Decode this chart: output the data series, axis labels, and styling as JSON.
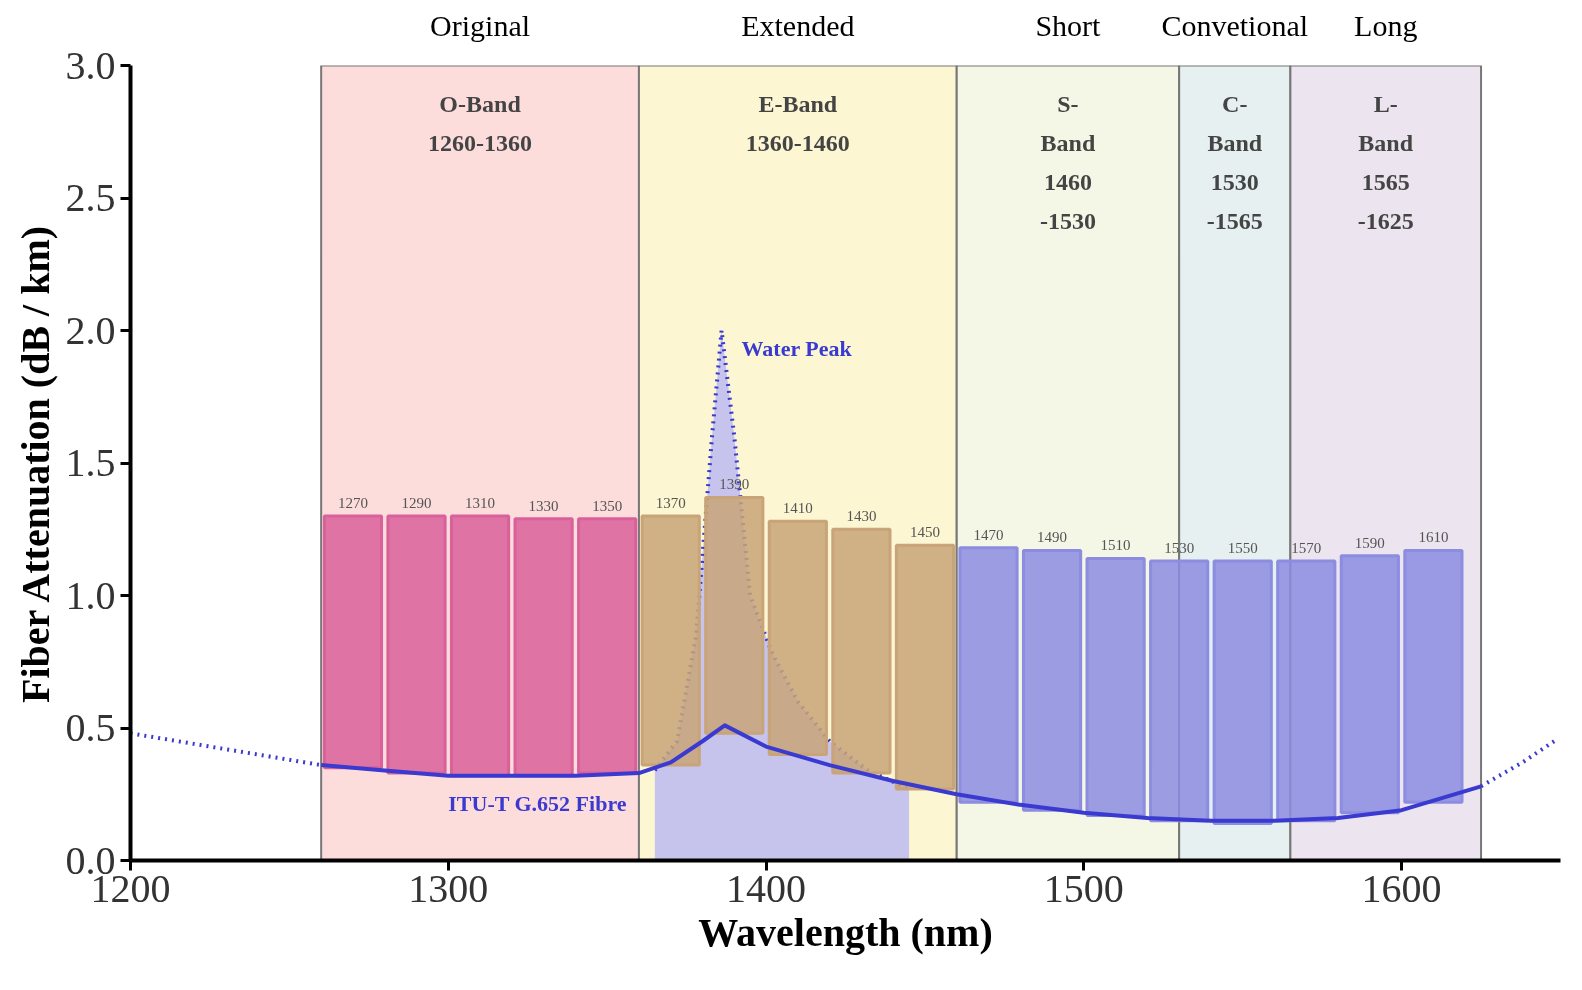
{
  "chart_data": {
    "type": "bar",
    "xlabel": "Wavelength (nm)",
    "ylabel": "Fiber Attenuation (dB / km)",
    "xlim": [
      1200,
      1650
    ],
    "xticks": [
      1200,
      1300,
      1400,
      1500,
      1600
    ],
    "ylim": [
      0,
      3
    ],
    "yticks": [
      {
        "value": 0,
        "label": "0.0"
      },
      {
        "value": 0.5,
        "label": "0.5"
      },
      {
        "value": 1,
        "label": "1.0"
      },
      {
        "value": 1.5,
        "label": "1.5"
      },
      {
        "value": 2,
        "label": "2.0"
      },
      {
        "value": 2.5,
        "label": "2.5"
      },
      {
        "value": 3,
        "label": "3.0"
      }
    ],
    "grid": false,
    "bands": [
      {
        "axis": "x",
        "from": 1260,
        "to": 1360,
        "label": "O-Band\n1260-1360",
        "color": "#fddcdc"
      },
      {
        "axis": "x",
        "from": 1360,
        "to": 1460,
        "label": "E-Band\n1360-1460",
        "color": "#fcf6d2"
      },
      {
        "axis": "x",
        "from": 1460,
        "to": 1530,
        "label": "S-\nBand\n1460\n-1530",
        "color": "#f4f6e6"
      },
      {
        "axis": "x",
        "from": 1530,
        "to": 1565,
        "label": "C-\nBand\n1530\n-1565",
        "color": "#e6f0f0"
      },
      {
        "axis": "x",
        "from": 1565,
        "to": 1625,
        "label": "L-\nBand\n1565\n-1625",
        "color": "#ece4ee"
      }
    ],
    "annotations": [
      "Original",
      "Extended",
      "Short",
      "Convetional",
      "Long",
      {
        "text": "1270",
        "x": 1270,
        "y": 1.3
      },
      {
        "text": "1290",
        "x": 1290,
        "y": 1.3
      },
      {
        "text": "1310",
        "x": 1310,
        "y": 1.3
      },
      {
        "text": "1330",
        "x": 1330,
        "y": 1.29
      },
      {
        "text": "1350",
        "x": 1350,
        "y": 1.29
      },
      {
        "text": "1370",
        "x": 1370,
        "y": 1.3
      },
      {
        "text": "1390",
        "x": 1390,
        "y": 1.37
      },
      {
        "text": "1410",
        "x": 1410,
        "y": 1.28
      },
      {
        "text": "1430",
        "x": 1430,
        "y": 1.25
      },
      {
        "text": "1450",
        "x": 1450,
        "y": 1.19
      },
      {
        "text": "1470",
        "x": 1470,
        "y": 1.18
      },
      {
        "text": "1490",
        "x": 1490,
        "y": 1.17
      },
      {
        "text": "1510",
        "x": 1510,
        "y": 1.14
      },
      {
        "text": "1530",
        "x": 1530,
        "y": 1.13
      },
      {
        "text": "1550",
        "x": 1550,
        "y": 1.13
      },
      {
        "text": "1570",
        "x": 1570,
        "y": 1.13
      },
      {
        "text": "1590",
        "x": 1590,
        "y": 1.15
      },
      {
        "text": "1610",
        "x": 1610,
        "y": 1.17
      }
    ],
    "series": [
      {
        "type": "area",
        "name": "Water Peak",
        "color": "#b8b8f2",
        "line_style": "dotted",
        "x": [
          1365,
          1372,
          1378,
          1383,
          1386,
          1390,
          1395,
          1402,
          1410,
          1420,
          1432,
          1445
        ],
        "values": [
          0.34,
          0.45,
          0.85,
          1.6,
          2.0,
          1.6,
          1.0,
          0.78,
          0.6,
          0.45,
          0.34,
          0.27
        ]
      },
      {
        "x": [
          1270,
          1290,
          1310,
          1330,
          1350,
          1370,
          1390,
          1410,
          1430,
          1450,
          1470,
          1490,
          1510,
          1530,
          1550,
          1570,
          1590,
          1610
        ],
        "base": [
          0.35,
          0.33,
          0.32,
          0.32,
          0.33,
          0.36,
          0.48,
          0.4,
          0.33,
          0.27,
          0.22,
          0.19,
          0.17,
          0.15,
          0.14,
          0.15,
          0.18,
          0.22
        ],
        "values": [
          0.95,
          0.97,
          0.98,
          0.97,
          0.96,
          0.94,
          0.89,
          0.88,
          0.92,
          0.92,
          0.96,
          0.98,
          0.97,
          0.98,
          0.99,
          0.98,
          0.97,
          0.95
        ],
        "colors": [
          "#d9609a",
          "#d9609a",
          "#d9609a",
          "#d9609a",
          "#d9609a",
          "#c8a478",
          "#c8a478",
          "#c8a478",
          "#c8a478",
          "#c8a478",
          "#8c8ce0",
          "#8c8ce0",
          "#8c8ce0",
          "#8c8ce0",
          "#8c8ce0",
          "#8c8ce0",
          "#8c8ce0",
          "#8c8ce0"
        ]
      },
      {
        "type": "line",
        "name": "ITU-T G.652 Fibre",
        "color": "#3a3ad0",
        "line_style": "solid",
        "x": [
          1260,
          1280,
          1300,
          1320,
          1340,
          1360,
          1370,
          1380,
          1387,
          1400,
          1420,
          1440,
          1460,
          1480,
          1500,
          1520,
          1540,
          1560,
          1580,
          1600,
          1625
        ],
        "values": [
          0.36,
          0.34,
          0.32,
          0.32,
          0.32,
          0.33,
          0.37,
          0.45,
          0.51,
          0.43,
          0.36,
          0.3,
          0.25,
          0.21,
          0.18,
          0.16,
          0.15,
          0.15,
          0.16,
          0.19,
          0.28
        ]
      },
      {
        "type": "line",
        "color": "#3a3ad0",
        "line_style": "dotted",
        "x": [
          1200,
          1220,
          1240,
          1260
        ],
        "values": [
          0.48,
          0.44,
          0.4,
          0.36
        ]
      },
      {
        "type": "line",
        "color": "#3a3ad0",
        "line_style": "dotted",
        "x": [
          1625,
          1638,
          1648
        ],
        "values": [
          0.28,
          0.37,
          0.45
        ]
      }
    ]
  }
}
